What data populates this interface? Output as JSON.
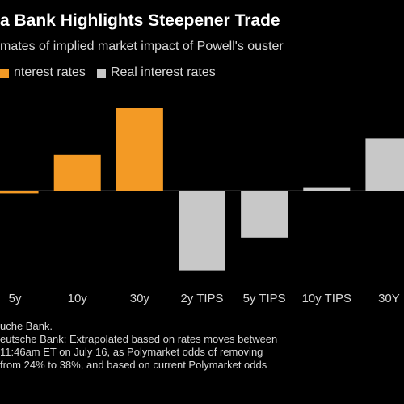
{
  "header": {
    "title": "a Bank Highlights Steepener Trade",
    "subtitle": "mates of implied market impact of Powell's ouster"
  },
  "legend": {
    "nominal_label": "nterest rates",
    "real_label": "Real interest rates"
  },
  "colors": {
    "nominal": "#f39a25",
    "real": "#c8c8c8",
    "background": "#000000",
    "baseline": "#444444"
  },
  "notes": {
    "source": "uche Bank.",
    "line1": "eutsche Bank: Extrapolated based on rates moves between",
    "line2": "11:46am ET on July 16, as Polymarket odds of removing",
    "line3": "from 24% to 38%, and based on current Polymarket odds"
  },
  "chart_data": {
    "type": "bar",
    "categories": [
      "5y",
      "10y",
      "30y",
      "2y TIPS",
      "5y TIPS",
      "10y TIPS",
      "30Y"
    ],
    "series": [
      {
        "name": "nterest rates",
        "values": [
          -1,
          13,
          30,
          null,
          null,
          null,
          null
        ]
      },
      {
        "name": "Real interest rates",
        "values": [
          null,
          null,
          null,
          -29,
          -17,
          1,
          19
        ]
      }
    ],
    "ylim": [
      -30,
      32
    ],
    "grid": false,
    "legend_position": "top-left"
  }
}
